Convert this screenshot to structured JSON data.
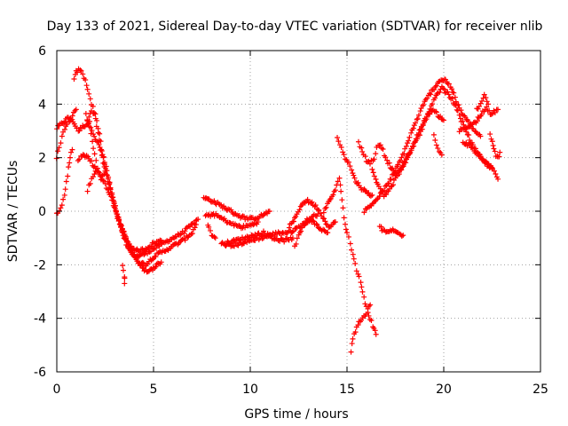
{
  "chart_data": {
    "type": "scatter",
    "title": "Day 133 of 2021, Sidereal Day-to-day VTEC variation (SDTVAR) for receiver nlib",
    "xlabel": "GPS time / hours",
    "ylabel": "SDTVAR / TECUs",
    "xlim": [
      0,
      25
    ],
    "ylim": [
      -6,
      6
    ],
    "xticks": [
      0,
      5,
      10,
      15,
      20,
      25
    ],
    "yticks": [
      -6,
      -4,
      -2,
      0,
      2,
      4,
      6
    ],
    "grid": true,
    "marker": "+",
    "color": "#ff0000",
    "series": [
      {
        "tracks": [
          [
            [
              0.0,
              3.1
            ],
            [
              0.3,
              3.3
            ],
            [
              0.6,
              3.5
            ],
            [
              0.9,
              3.3
            ],
            [
              1.1,
              3.0
            ],
            [
              1.4,
              3.2
            ],
            [
              1.7,
              3.3
            ],
            [
              2.0,
              2.7
            ],
            [
              2.3,
              2.3
            ],
            [
              2.6,
              1.5
            ],
            [
              2.9,
              0.4
            ],
            [
              3.2,
              -0.4
            ],
            [
              3.5,
              -1.0
            ],
            [
              3.8,
              -1.5
            ],
            [
              4.1,
              -1.7
            ],
            [
              4.5,
              -1.6
            ],
            [
              5.0,
              -1.4
            ],
            [
              5.5,
              -1.2
            ],
            [
              6.0,
              -1.0
            ],
            [
              6.5,
              -0.8
            ],
            [
              7.0,
              -0.5
            ],
            [
              7.3,
              -0.3
            ]
          ],
          [
            [
              0.9,
              4.9
            ],
            [
              1.0,
              5.2
            ],
            [
              1.2,
              5.3
            ],
            [
              1.4,
              5.0
            ],
            [
              1.6,
              4.6
            ],
            [
              1.8,
              4.0
            ],
            [
              2.0,
              3.6
            ],
            [
              2.2,
              2.9
            ],
            [
              2.4,
              2.0
            ],
            [
              2.6,
              1.3
            ],
            [
              2.9,
              0.5
            ],
            [
              3.2,
              -0.3
            ],
            [
              3.5,
              -0.9
            ],
            [
              3.8,
              -1.3
            ],
            [
              4.2,
              -1.5
            ],
            [
              4.6,
              -1.4
            ],
            [
              5.0,
              -1.2
            ],
            [
              5.4,
              -1.1
            ]
          ],
          [
            [
              1.6,
              3.4
            ],
            [
              1.8,
              3.8
            ],
            [
              2.0,
              3.5
            ],
            [
              2.2,
              2.6
            ],
            [
              2.4,
              1.8
            ],
            [
              2.7,
              1.0
            ],
            [
              3.0,
              0.2
            ],
            [
              3.3,
              -0.6
            ],
            [
              3.6,
              -1.2
            ],
            [
              3.9,
              -1.6
            ],
            [
              4.2,
              -1.9
            ],
            [
              4.6,
              -2.0
            ],
            [
              5.0,
              -1.7
            ],
            [
              5.5,
              -1.5
            ],
            [
              6.0,
              -1.3
            ],
            [
              6.5,
              -1.1
            ],
            [
              7.0,
              -0.8
            ],
            [
              7.2,
              -0.5
            ]
          ],
          [
            [
              1.1,
              1.9
            ],
            [
              1.3,
              2.1
            ],
            [
              1.6,
              2.0
            ],
            [
              1.9,
              1.7
            ],
            [
              2.2,
              1.4
            ],
            [
              2.5,
              1.0
            ],
            [
              2.8,
              0.5
            ],
            [
              3.1,
              -0.1
            ],
            [
              3.4,
              -0.7
            ],
            [
              3.7,
              -1.2
            ],
            [
              4.0,
              -1.6
            ],
            [
              4.3,
              -2.0
            ],
            [
              4.7,
              -2.3
            ],
            [
              5.0,
              -2.1
            ],
            [
              5.4,
              -1.9
            ]
          ],
          [
            [
              0.0,
              -0.1
            ],
            [
              0.2,
              0.1
            ],
            [
              0.4,
              0.6
            ],
            [
              0.5,
              1.1
            ],
            [
              0.6,
              1.6
            ],
            [
              0.7,
              2.0
            ],
            [
              0.8,
              2.3
            ]
          ],
          [
            [
              0.0,
              2.0
            ],
            [
              0.2,
              2.6
            ],
            [
              0.4,
              3.1
            ],
            [
              0.6,
              3.3
            ],
            [
              0.8,
              3.6
            ],
            [
              1.0,
              3.8
            ]
          ],
          [
            [
              1.5,
              3.6
            ],
            [
              1.7,
              3.2
            ],
            [
              1.9,
              2.4
            ],
            [
              2.1,
              1.6
            ],
            [
              2.3,
              1.2
            ],
            [
              2.5,
              1.5
            ]
          ],
          [
            [
              1.6,
              0.8
            ],
            [
              1.8,
              1.2
            ],
            [
              2.0,
              1.5
            ]
          ],
          [
            [
              3.4,
              -2.0
            ],
            [
              3.5,
              -2.4
            ],
            [
              3.5,
              -2.7
            ]
          ],
          [
            [
              7.6,
              0.5
            ],
            [
              8.0,
              0.4
            ],
            [
              8.5,
              0.2
            ],
            [
              9.0,
              0.0
            ],
            [
              9.5,
              -0.2
            ],
            [
              10.0,
              -0.3
            ],
            [
              10.5,
              -0.2
            ],
            [
              11.0,
              0.0
            ]
          ],
          [
            [
              7.7,
              -0.2
            ],
            [
              8.1,
              -0.1
            ],
            [
              8.6,
              -0.3
            ],
            [
              9.1,
              -0.5
            ],
            [
              9.6,
              -0.6
            ],
            [
              10.1,
              -0.5
            ],
            [
              10.4,
              -0.4
            ]
          ],
          [
            [
              7.8,
              -0.5
            ],
            [
              8.0,
              -0.9
            ],
            [
              8.2,
              -1.0
            ]
          ],
          [
            [
              8.5,
              -1.2
            ],
            [
              9.0,
              -1.3
            ],
            [
              9.5,
              -1.2
            ],
            [
              10.0,
              -1.1
            ],
            [
              10.5,
              -1.0
            ],
            [
              11.0,
              -0.9
            ],
            [
              11.5,
              -0.8
            ],
            [
              12.0,
              -0.8
            ],
            [
              12.5,
              -0.6
            ],
            [
              13.0,
              -0.3
            ],
            [
              13.5,
              -0.1
            ]
          ],
          [
            [
              8.7,
              -1.2
            ],
            [
              9.2,
              -1.1
            ],
            [
              9.7,
              -1.0
            ],
            [
              10.2,
              -0.9
            ],
            [
              10.7,
              -0.8
            ],
            [
              11.2,
              -1.0
            ],
            [
              11.7,
              -1.1
            ],
            [
              12.2,
              -1.0
            ]
          ],
          [
            [
              12.0,
              -0.6
            ],
            [
              12.3,
              -0.3
            ],
            [
              12.6,
              0.2
            ],
            [
              12.9,
              0.4
            ],
            [
              13.2,
              0.3
            ],
            [
              13.5,
              0.1
            ],
            [
              13.8,
              -0.3
            ],
            [
              14.1,
              -0.6
            ],
            [
              14.4,
              -0.4
            ]
          ],
          [
            [
              12.3,
              -1.3
            ],
            [
              12.5,
              -0.9
            ],
            [
              12.8,
              -0.5
            ],
            [
              13.1,
              -0.3
            ],
            [
              13.4,
              -0.5
            ],
            [
              13.7,
              -0.7
            ],
            [
              14.0,
              -0.8
            ]
          ],
          [
            [
              13.8,
              0.0
            ],
            [
              14.1,
              0.4
            ],
            [
              14.4,
              0.8
            ],
            [
              14.6,
              1.2
            ],
            [
              14.7,
              0.8
            ],
            [
              14.8,
              0.1
            ],
            [
              14.9,
              -0.5
            ],
            [
              15.0,
              -0.8
            ]
          ],
          [
            [
              14.5,
              2.7
            ],
            [
              14.7,
              2.4
            ],
            [
              14.9,
              2.0
            ],
            [
              15.1,
              1.8
            ],
            [
              15.4,
              1.2
            ],
            [
              15.7,
              0.9
            ],
            [
              16.0,
              0.7
            ],
            [
              16.3,
              0.6
            ]
          ],
          [
            [
              15.1,
              -1.0
            ],
            [
              15.3,
              -1.6
            ],
            [
              15.5,
              -2.2
            ],
            [
              15.7,
              -2.6
            ],
            [
              15.8,
              -3.0
            ],
            [
              16.0,
              -3.6
            ],
            [
              16.2,
              -4.0
            ],
            [
              16.4,
              -4.4
            ],
            [
              16.5,
              -4.6
            ]
          ],
          [
            [
              15.2,
              -5.2
            ],
            [
              15.3,
              -4.8
            ],
            [
              15.5,
              -4.3
            ],
            [
              15.8,
              -4.0
            ],
            [
              16.0,
              -3.8
            ],
            [
              16.2,
              -3.5
            ]
          ],
          [
            [
              15.6,
              2.6
            ],
            [
              15.8,
              2.2
            ],
            [
              16.0,
              1.9
            ],
            [
              16.2,
              1.8
            ],
            [
              16.4,
              2.0
            ],
            [
              16.6,
              2.5
            ],
            [
              16.8,
              2.4
            ],
            [
              17.0,
              2.0
            ],
            [
              17.3,
              1.6
            ],
            [
              17.6,
              1.4
            ],
            [
              17.9,
              1.7
            ],
            [
              18.2,
              2.1
            ],
            [
              18.5,
              2.6
            ],
            [
              18.8,
              3.1
            ],
            [
              19.1,
              3.5
            ],
            [
              19.4,
              3.8
            ],
            [
              19.7,
              3.6
            ],
            [
              20.0,
              3.4
            ]
          ],
          [
            [
              15.9,
              0.0
            ],
            [
              16.2,
              0.2
            ],
            [
              16.5,
              0.4
            ],
            [
              16.8,
              0.7
            ],
            [
              17.1,
              1.0
            ],
            [
              17.4,
              1.4
            ],
            [
              17.7,
              1.8
            ],
            [
              18.0,
              2.3
            ],
            [
              18.3,
              2.9
            ],
            [
              18.6,
              3.4
            ],
            [
              18.9,
              3.9
            ],
            [
              19.2,
              4.3
            ],
            [
              19.5,
              4.6
            ],
            [
              19.8,
              4.9
            ],
            [
              20.1,
              4.9
            ],
            [
              20.4,
              4.6
            ],
            [
              20.7,
              4.0
            ],
            [
              21.0,
              3.6
            ],
            [
              21.3,
              3.3
            ],
            [
              21.6,
              3.0
            ],
            [
              21.9,
              2.8
            ]
          ],
          [
            [
              16.7,
              -0.6
            ],
            [
              17.0,
              -0.8
            ],
            [
              17.3,
              -0.7
            ],
            [
              17.6,
              -0.8
            ],
            [
              17.9,
              -0.9
            ]
          ],
          [
            [
              16.3,
              1.6
            ],
            [
              16.6,
              1.0
            ],
            [
              16.9,
              0.6
            ],
            [
              17.2,
              0.8
            ],
            [
              17.5,
              1.2
            ],
            [
              17.8,
              1.6
            ],
            [
              18.1,
              2.0
            ],
            [
              18.4,
              2.4
            ],
            [
              18.7,
              2.8
            ],
            [
              19.0,
              3.3
            ],
            [
              19.3,
              3.8
            ],
            [
              19.6,
              4.3
            ],
            [
              19.9,
              4.6
            ],
            [
              20.2,
              4.4
            ],
            [
              20.5,
              4.1
            ],
            [
              20.8,
              3.6
            ],
            [
              21.1,
              3.1
            ],
            [
              21.4,
              2.6
            ],
            [
              21.7,
              2.2
            ],
            [
              22.0,
              1.9
            ],
            [
              22.3,
              1.7
            ],
            [
              22.6,
              1.5
            ],
            [
              22.8,
              1.2
            ]
          ],
          [
            [
              19.5,
              2.8
            ],
            [
              19.7,
              2.3
            ],
            [
              19.9,
              2.1
            ]
          ],
          [
            [
              20.8,
              3.0
            ],
            [
              21.0,
              3.1
            ],
            [
              21.3,
              3.2
            ],
            [
              21.6,
              3.3
            ],
            [
              21.9,
              3.6
            ],
            [
              22.2,
              3.9
            ],
            [
              22.4,
              3.6
            ],
            [
              22.6,
              3.7
            ],
            [
              22.8,
              3.8
            ]
          ],
          [
            [
              21.7,
              3.8
            ],
            [
              21.9,
              4.0
            ],
            [
              22.1,
              4.3
            ],
            [
              22.3,
              4.0
            ]
          ],
          [
            [
              22.4,
              2.9
            ],
            [
              22.5,
              2.6
            ],
            [
              22.6,
              2.3
            ],
            [
              22.7,
              2.1
            ],
            [
              22.8,
              2.0
            ],
            [
              22.9,
              2.2
            ]
          ],
          [
            [
              21.0,
              2.6
            ],
            [
              21.4,
              2.4
            ],
            [
              21.8,
              2.1
            ],
            [
              22.2,
              1.8
            ],
            [
              22.5,
              1.6
            ]
          ]
        ]
      }
    ]
  }
}
